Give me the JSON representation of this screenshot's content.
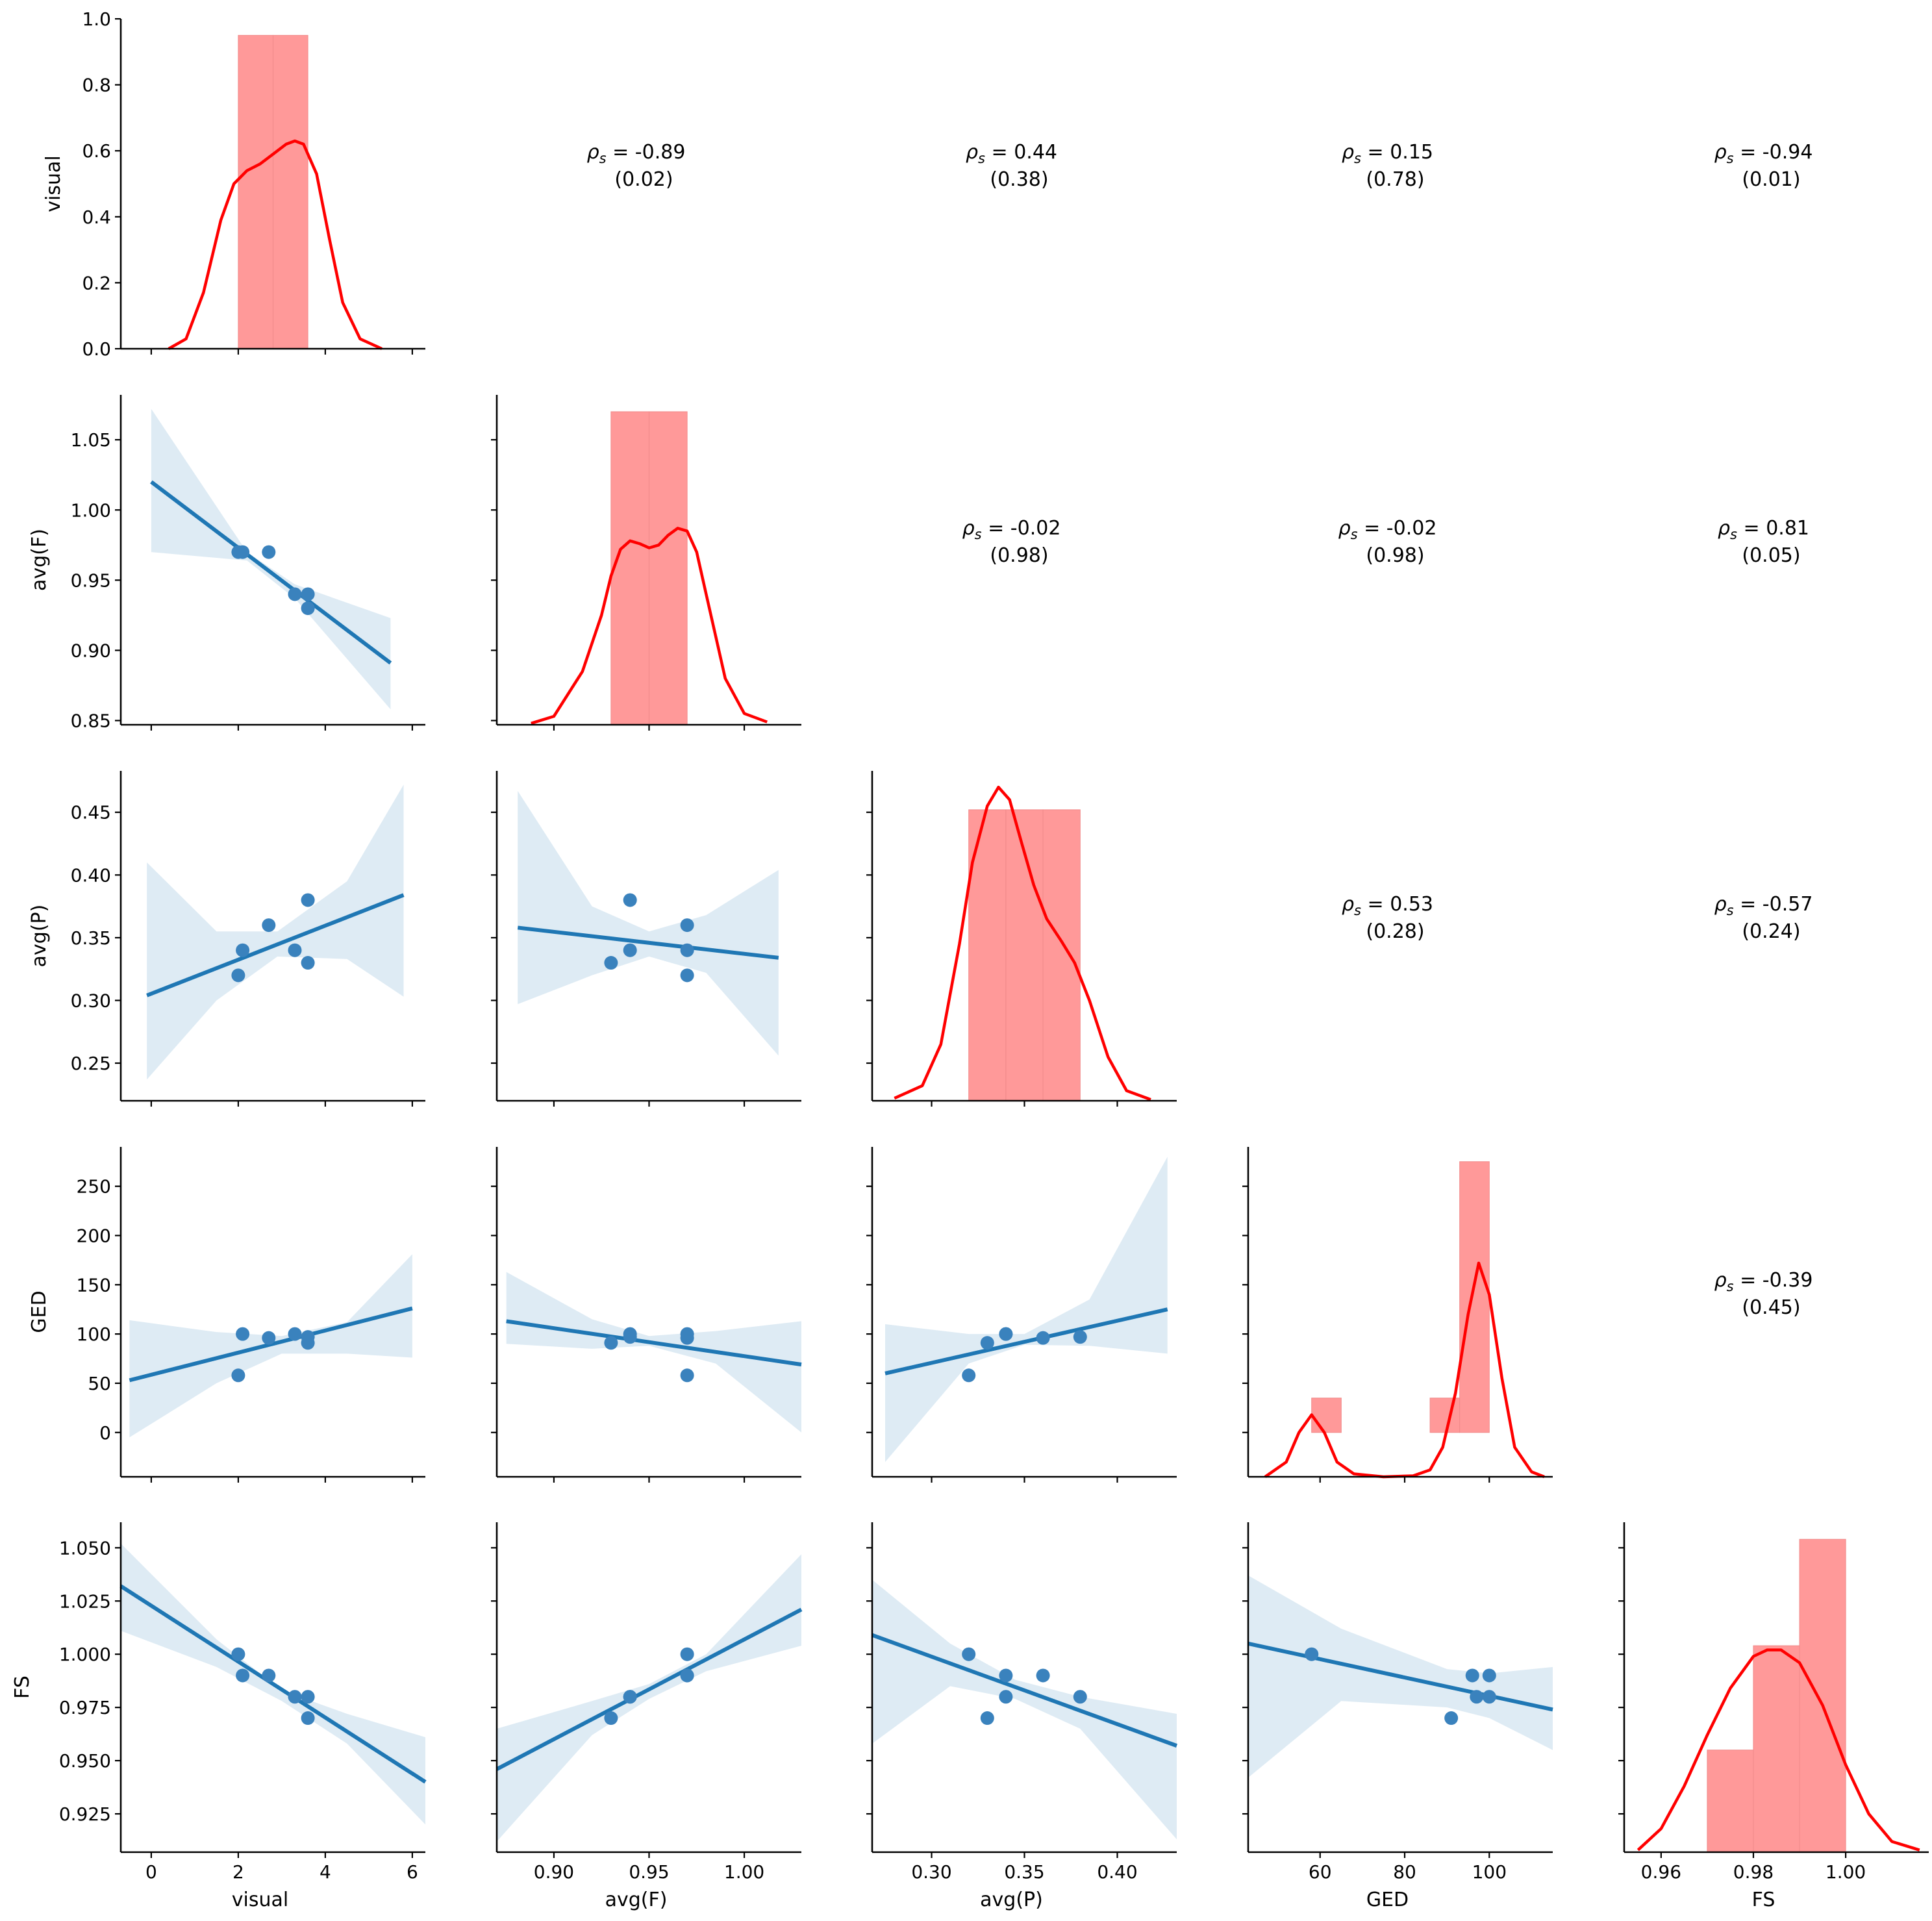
{
  "chart_data": {
    "type": "scatter",
    "title": "",
    "variables": [
      "visual",
      "avg(F)",
      "avg(P)",
      "GED",
      "FS"
    ],
    "observations": {
      "visual": [
        2.0,
        2.1,
        2.7,
        3.3,
        3.6,
        3.6
      ],
      "avg(F)": [
        0.97,
        0.97,
        0.97,
        0.94,
        0.94,
        0.93
      ],
      "avg(P)": [
        0.32,
        0.34,
        0.36,
        0.34,
        0.38,
        0.33
      ],
      "GED": [
        58,
        100,
        96,
        100,
        97,
        91
      ],
      "FS": [
        1.0,
        0.99,
        0.99,
        0.98,
        0.98,
        0.97
      ]
    },
    "axes": {
      "visual": {
        "lim": [
          -0.7,
          6.3
        ],
        "ticks": [
          0,
          2,
          4,
          6
        ],
        "tick_labels": [
          "0",
          "2",
          "4",
          "6"
        ]
      },
      "avg(F)": {
        "lim": [
          0.87,
          1.03
        ],
        "ticks": [
          0.9,
          0.95,
          1.0
        ],
        "tick_labels": [
          "0.90",
          "0.95",
          "1.00"
        ]
      },
      "avg(P)": {
        "lim": [
          0.268,
          0.432
        ],
        "ticks": [
          0.3,
          0.35,
          0.4
        ],
        "tick_labels": [
          "0.30",
          "0.35",
          "0.40"
        ]
      },
      "GED": {
        "lim": [
          43,
          115
        ],
        "ticks": [
          60,
          80,
          100
        ],
        "tick_labels": [
          "60",
          "80",
          "100"
        ]
      },
      "FS": {
        "lim": [
          0.952,
          1.018
        ],
        "ticks": [
          0.96,
          0.98,
          1.0
        ],
        "tick_labels": [
          "0.96",
          "0.98",
          "1.00"
        ]
      }
    },
    "row_axes": {
      "visual": {
        "lim": [
          0,
          1.0
        ],
        "ticks": [
          0,
          0.2,
          0.4,
          0.6,
          0.8,
          1.0
        ],
        "tick_labels": [
          "0.0",
          "0.2",
          "0.4",
          "0.6",
          "0.8",
          "1.0"
        ]
      },
      "avg(F)": {
        "lim": [
          0.847,
          1.082
        ],
        "ticks": [
          0.85,
          0.9,
          0.95,
          1.0,
          1.05
        ],
        "tick_labels": [
          "0.85",
          "0.90",
          "0.95",
          "1.00",
          "1.05"
        ]
      },
      "avg(P)": {
        "lim": [
          0.22,
          0.483
        ],
        "ticks": [
          0.25,
          0.3,
          0.35,
          0.4,
          0.45
        ],
        "tick_labels": [
          "0.25",
          "0.30",
          "0.35",
          "0.40",
          "0.45"
        ]
      },
      "GED": {
        "lim": [
          -45,
          290
        ],
        "ticks": [
          0,
          50,
          100,
          150,
          200,
          250
        ],
        "tick_labels": [
          "0",
          "50",
          "100",
          "150",
          "200",
          "250"
        ]
      },
      "FS": {
        "lim": [
          0.907,
          1.062
        ],
        "ticks": [
          0.925,
          0.95,
          0.975,
          1.0,
          1.025,
          1.05
        ],
        "tick_labels": [
          "0.925",
          "0.950",
          "0.975",
          "1.000",
          "1.025",
          "1.050"
        ]
      }
    },
    "diagonal": {
      "visual": {
        "bin_edges": [
          2.0,
          2.8,
          3.6
        ],
        "heights": [
          0.95,
          0.95
        ],
        "kde": {
          "x": [
            0.4,
            0.8,
            1.2,
            1.6,
            1.9,
            2.2,
            2.5,
            2.8,
            3.1,
            3.3,
            3.5,
            3.8,
            4.1,
            4.4,
            4.8,
            5.3
          ],
          "y": [
            0.0,
            0.03,
            0.17,
            0.39,
            0.5,
            0.54,
            0.56,
            0.59,
            0.62,
            0.63,
            0.62,
            0.53,
            0.33,
            0.14,
            0.03,
            0.0
          ]
        }
      },
      "avg(F)": {
        "bin_edges": [
          0.93,
          0.95,
          0.97
        ],
        "heights": [
          1.07,
          1.07
        ],
        "kde": {
          "x": [
            0.888,
            0.9,
            0.915,
            0.925,
            0.93,
            0.935,
            0.94,
            0.945,
            0.95,
            0.955,
            0.96,
            0.965,
            0.97,
            0.975,
            0.98,
            0.99,
            1.0,
            1.012
          ],
          "y": [
            0.848,
            0.853,
            0.885,
            0.925,
            0.953,
            0.972,
            0.978,
            0.976,
            0.973,
            0.975,
            0.982,
            0.987,
            0.985,
            0.97,
            0.94,
            0.88,
            0.855,
            0.849
          ]
        }
      },
      "avg(P)": {
        "bin_edges": [
          0.32,
          0.34,
          0.36,
          0.38
        ],
        "heights": [
          0.452,
          0.452,
          0.452
        ],
        "kde": {
          "x": [
            0.28,
            0.295,
            0.305,
            0.315,
            0.322,
            0.33,
            0.336,
            0.342,
            0.348,
            0.355,
            0.362,
            0.37,
            0.377,
            0.385,
            0.395,
            0.405,
            0.418
          ],
          "y": [
            0.222,
            0.232,
            0.265,
            0.345,
            0.41,
            0.455,
            0.47,
            0.46,
            0.428,
            0.392,
            0.365,
            0.347,
            0.33,
            0.3,
            0.255,
            0.228,
            0.221
          ]
        }
      },
      "GED": {
        "bin_edges": [
          58,
          65,
          86,
          93,
          100
        ],
        "heights": [
          35,
          0,
          35,
          275
        ],
        "kde": {
          "x": [
            47,
            52,
            55,
            58,
            61,
            64,
            68,
            75,
            82,
            86,
            89,
            92,
            95,
            97.5,
            100,
            103,
            106,
            110,
            113
          ],
          "y": [
            -45,
            -30,
            0,
            18,
            0,
            -30,
            -42,
            -45,
            -44,
            -38,
            -15,
            40,
            120,
            172,
            140,
            55,
            -15,
            -40,
            -45
          ]
        }
      },
      "FS": {
        "bin_edges": [
          0.97,
          0.98,
          0.99,
          1.0
        ],
        "heights": [
          0.955,
          1.004,
          1.054
        ],
        "kde": {
          "x": [
            0.955,
            0.96,
            0.965,
            0.97,
            0.975,
            0.98,
            0.983,
            0.986,
            0.99,
            0.995,
            1.0,
            1.005,
            1.01,
            1.016
          ],
          "y": [
            0.908,
            0.918,
            0.938,
            0.962,
            0.984,
            0.999,
            1.002,
            1.002,
            0.996,
            0.976,
            0.948,
            0.925,
            0.912,
            0.908
          ]
        }
      }
    },
    "regressions": [
      {
        "x": "visual",
        "y": "avg(F)",
        "line": [
          [
            0.0,
            1.02
          ],
          [
            5.5,
            0.891
          ]
        ],
        "ci": [
          [
            0.0,
            1.072,
            0.97
          ],
          [
            2.2,
            0.97,
            0.964
          ],
          [
            3.3,
            0.947,
            0.937
          ],
          [
            5.5,
            0.923,
            0.858
          ]
        ]
      },
      {
        "x": "visual",
        "y": "avg(P)",
        "line": [
          [
            -0.1,
            0.304
          ],
          [
            5.8,
            0.384
          ]
        ],
        "ci": [
          [
            -0.1,
            0.41,
            0.237
          ],
          [
            1.5,
            0.355,
            0.3
          ],
          [
            2.9,
            0.355,
            0.335
          ],
          [
            4.5,
            0.395,
            0.333
          ],
          [
            5.8,
            0.472,
            0.303
          ]
        ]
      },
      {
        "x": "visual",
        "y": "GED",
        "line": [
          [
            -0.5,
            53
          ],
          [
            6.0,
            126
          ]
        ],
        "ci": [
          [
            -0.5,
            114,
            -5
          ],
          [
            1.5,
            102,
            50
          ],
          [
            3.0,
            98,
            80
          ],
          [
            4.5,
            112,
            80
          ],
          [
            6.0,
            181,
            76
          ]
        ]
      },
      {
        "x": "visual",
        "y": "FS",
        "line": [
          [
            -0.7,
            1.032
          ],
          [
            6.3,
            0.94
          ]
        ],
        "ci": [
          [
            -0.7,
            1.052,
            1.011
          ],
          [
            1.5,
            1.007,
            0.994
          ],
          [
            3.0,
            0.983,
            0.978
          ],
          [
            4.5,
            0.972,
            0.958
          ],
          [
            6.3,
            0.961,
            0.92
          ]
        ]
      },
      {
        "x": "avg(F)",
        "y": "avg(P)",
        "line": [
          [
            0.881,
            0.358
          ],
          [
            1.018,
            0.334
          ]
        ],
        "ci": [
          [
            0.881,
            0.467,
            0.297
          ],
          [
            0.92,
            0.375,
            0.32
          ],
          [
            0.95,
            0.355,
            0.335
          ],
          [
            0.98,
            0.368,
            0.322
          ],
          [
            1.018,
            0.404,
            0.256
          ]
        ]
      },
      {
        "x": "avg(F)",
        "y": "GED",
        "line": [
          [
            0.875,
            113
          ],
          [
            1.03,
            69
          ]
        ],
        "ci": [
          [
            0.875,
            163,
            90
          ],
          [
            0.92,
            115,
            85
          ],
          [
            0.95,
            98,
            88
          ],
          [
            0.985,
            103,
            70
          ],
          [
            1.03,
            113,
            0
          ]
        ]
      },
      {
        "x": "avg(F)",
        "y": "FS",
        "line": [
          [
            0.87,
            0.946
          ],
          [
            1.03,
            1.021
          ]
        ],
        "ci": [
          [
            0.87,
            0.965,
            0.912
          ],
          [
            0.92,
            0.978,
            0.962
          ],
          [
            0.95,
            0.986,
            0.979
          ],
          [
            0.98,
            1.0,
            0.992
          ],
          [
            1.03,
            1.047,
            1.004
          ]
        ]
      },
      {
        "x": "avg(P)",
        "y": "GED",
        "line": [
          [
            0.275,
            60
          ],
          [
            0.427,
            125
          ]
        ],
        "ci": [
          [
            0.275,
            110,
            -30
          ],
          [
            0.32,
            100,
            70
          ],
          [
            0.35,
            100,
            89
          ],
          [
            0.385,
            135,
            88
          ],
          [
            0.427,
            280,
            80
          ]
        ]
      },
      {
        "x": "avg(P)",
        "y": "FS",
        "line": [
          [
            0.268,
            1.009
          ],
          [
            0.432,
            0.957
          ]
        ],
        "ci": [
          [
            0.268,
            1.035,
            0.958
          ],
          [
            0.31,
            1.005,
            0.985
          ],
          [
            0.345,
            0.988,
            0.979
          ],
          [
            0.38,
            0.98,
            0.965
          ],
          [
            0.432,
            0.972,
            0.913
          ]
        ]
      },
      {
        "x": "GED",
        "y": "FS",
        "line": [
          [
            43,
            1.005
          ],
          [
            115,
            0.974
          ]
        ],
        "ci": [
          [
            43,
            1.037,
            0.942
          ],
          [
            65,
            1.012,
            0.978
          ],
          [
            90,
            0.993,
            0.975
          ],
          [
            100,
            0.991,
            0.97
          ],
          [
            115,
            0.994,
            0.955
          ]
        ]
      }
    ],
    "correlations": [
      {
        "x": "avg(F)",
        "y": "visual",
        "rho": "-0.89",
        "p": "(0.02)"
      },
      {
        "x": "avg(P)",
        "y": "visual",
        "rho": "0.44",
        "p": "(0.38)"
      },
      {
        "x": "GED",
        "y": "visual",
        "rho": "0.15",
        "p": "(0.78)"
      },
      {
        "x": "FS",
        "y": "visual",
        "rho": "-0.94",
        "p": "(0.01)"
      },
      {
        "x": "avg(P)",
        "y": "avg(F)",
        "rho": "-0.02",
        "p": "(0.98)"
      },
      {
        "x": "GED",
        "y": "avg(F)",
        "rho": "-0.02",
        "p": "(0.98)"
      },
      {
        "x": "FS",
        "y": "avg(F)",
        "rho": "0.81",
        "p": "(0.05)"
      },
      {
        "x": "GED",
        "y": "avg(P)",
        "rho": "0.53",
        "p": "(0.28)"
      },
      {
        "x": "FS",
        "y": "avg(P)",
        "rho": "-0.57",
        "p": "(0.24)"
      },
      {
        "x": "FS",
        "y": "GED",
        "rho": "-0.39",
        "p": "(0.45)"
      }
    ],
    "rho_prefix": "ρ",
    "rho_subscript": "s",
    "rho_eq": " = ",
    "colors": {
      "scatter": "#3a82bd",
      "regression": "#1f77b4",
      "histogram": "#ff9999",
      "kde": "#ff0000"
    }
  }
}
